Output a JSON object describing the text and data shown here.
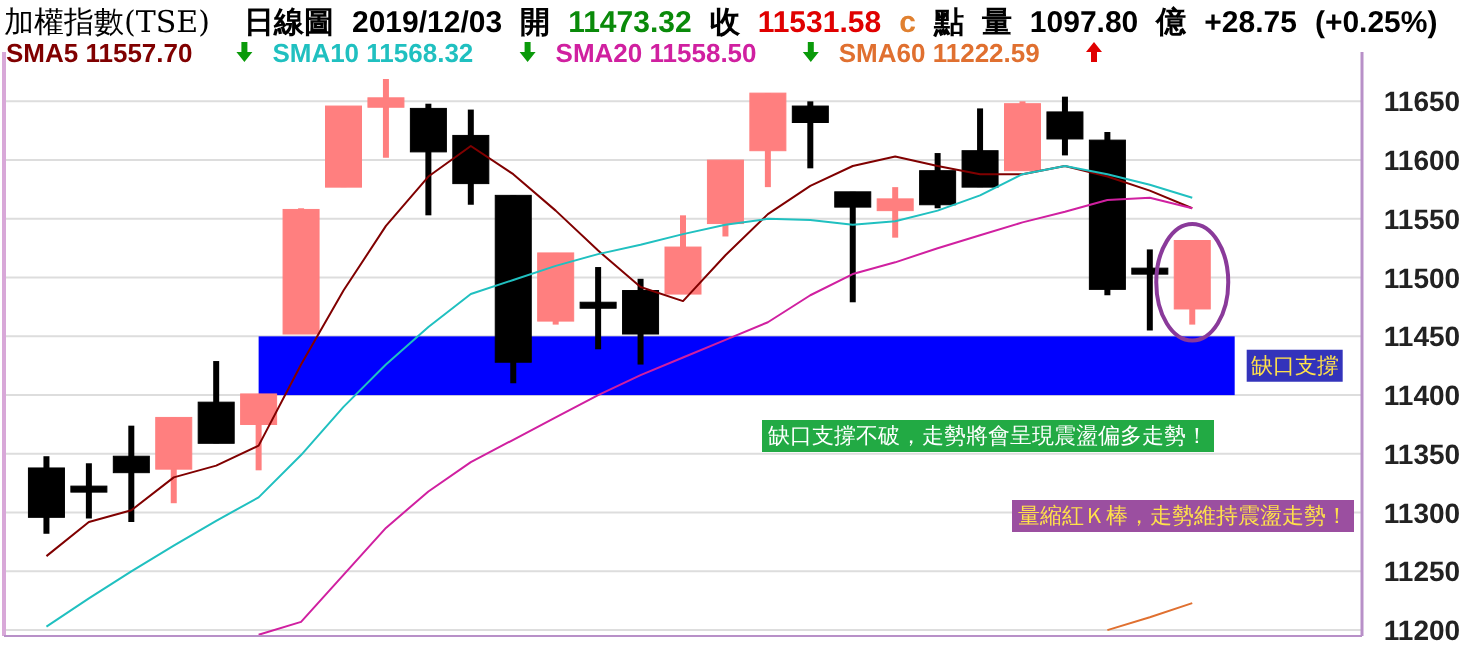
{
  "chart_data": {
    "type": "candlestick",
    "title": "加權指數(TSE)",
    "subtitle": "日線圖 2019/12/03 開 11473.32 收 11531.58 c 點 量 1097.80 億 +28.75 (+0.25%)",
    "categories": [
      null,
      null,
      null,
      null,
      null,
      null,
      null,
      null,
      null,
      null,
      null,
      null,
      null,
      null,
      null,
      null,
      null,
      null,
      null,
      null,
      null,
      null,
      null,
      null,
      null,
      null,
      null,
      null
    ],
    "ohlc": [
      [
        11338,
        11348,
        11282,
        11296
      ],
      [
        11321,
        11342,
        11295,
        11319
      ],
      [
        11348,
        11374,
        11292,
        11334
      ],
      [
        11337,
        11381,
        11308,
        11381
      ],
      [
        11394,
        11429,
        11359,
        11359
      ],
      [
        11375,
        11401,
        11336,
        11401
      ],
      [
        11452,
        11559,
        11452,
        11558
      ],
      [
        11577,
        11646,
        11577,
        11646
      ],
      [
        11645,
        11669,
        11602,
        11653
      ],
      [
        11644,
        11648,
        11553,
        11607
      ],
      [
        11621,
        11643,
        11562,
        11580
      ],
      [
        11570,
        11570,
        11410,
        11428
      ],
      [
        11463,
        11521,
        11460,
        11521
      ],
      [
        11478,
        11509,
        11439,
        11475
      ],
      [
        11489,
        11499,
        11426,
        11452
      ],
      [
        11486,
        11553,
        11486,
        11526
      ],
      [
        11546,
        11600,
        11535,
        11600
      ],
      [
        11608,
        11657,
        11577,
        11657
      ],
      [
        11646,
        11650,
        11593,
        11632
      ],
      [
        11573,
        11573,
        11479,
        11560
      ],
      [
        11557,
        11577,
        11534,
        11567
      ],
      [
        11591,
        11606,
        11559,
        11562
      ],
      [
        11608,
        11644,
        11577,
        11577
      ],
      [
        11591,
        11650,
        11591,
        11648
      ],
      [
        11641,
        11654,
        11604,
        11618
      ],
      [
        11617,
        11624,
        11485,
        11490
      ],
      [
        11508,
        11524,
        11455,
        11503
      ],
      [
        11473.32,
        11532,
        11460,
        11531.58
      ]
    ],
    "colors": [
      "#000000",
      "#000000",
      "#000000",
      "#ff7f7f",
      "#000000",
      "#ff7f7f",
      "#ff7f7f",
      "#ff7f7f",
      "#ff7f7f",
      "#000000",
      "#000000",
      "#000000",
      "#ff7f7f",
      "#000000",
      "#000000",
      "#ff7f7f",
      "#ff7f7f",
      "#ff7f7f",
      "#000000",
      "#000000",
      "#ff7f7f",
      "#000000",
      "#000000",
      "#ff7f7f",
      "#000000",
      "#000000",
      "#000000",
      "#ff7f7f"
    ],
    "series": [
      {
        "type": "line",
        "name": "SMA5 11557.70",
        "color": "#800000",
        "values": [
          11263,
          11292,
          11302,
          11330,
          11340,
          11357,
          11426,
          11489,
          11544,
          11586,
          11612,
          11588,
          11557,
          11523,
          11492,
          11480,
          11519,
          11554,
          11578,
          11595,
          11603,
          11595,
          11588,
          11588,
          11595,
          11586,
          11574,
          11559
        ]
      },
      {
        "type": "line",
        "name": "SMA10 11568.32",
        "color": "#20c0c0",
        "values": [
          11203,
          11227,
          11250,
          11272,
          11293,
          11313,
          11349,
          11390,
          11426,
          11458,
          11486,
          11498,
          11510,
          11520,
          11528,
          11537,
          11545,
          11550,
          11549,
          11545,
          11548,
          11557,
          11570,
          11588,
          11595,
          11588,
          11579,
          11568
        ]
      },
      {
        "type": "line",
        "name": "SMA20 11558.50",
        "color": "#d020a0",
        "values": [
          null,
          null,
          null,
          null,
          null,
          11196,
          11207,
          11247,
          11287,
          11318,
          11343,
          11362,
          11381,
          11400,
          11417,
          11432,
          11447,
          11462,
          11485,
          11503,
          11513,
          11525,
          11536,
          11547,
          11556,
          11566,
          11568,
          11559
        ]
      },
      {
        "type": "line",
        "name": "SMA60 11222.59",
        "color": "#e07030",
        "values": [
          null,
          null,
          null,
          null,
          null,
          null,
          null,
          null,
          null,
          null,
          null,
          null,
          null,
          null,
          null,
          null,
          null,
          null,
          null,
          null,
          null,
          null,
          null,
          null,
          null,
          11200,
          11211,
          11223
        ]
      }
    ],
    "ylim": [
      11195,
      11692
    ],
    "yticks": [
      11200,
      11250,
      11300,
      11350,
      11400,
      11450,
      11500,
      11550,
      11600,
      11650
    ],
    "bands": [
      {
        "axis": "y",
        "from": 11400,
        "to": 11450,
        "label": "缺口支撐",
        "color": "#0000ff"
      }
    ],
    "annotations": [
      "量縮紅Ｋ棒，走勢維持震盪走勢！",
      "缺口支撐不破，走勢將會呈現震盪偏多走勢！"
    ],
    "grid": "y",
    "legend": "top left",
    "tick_labels": "y",
    "marker": "none"
  }
}
